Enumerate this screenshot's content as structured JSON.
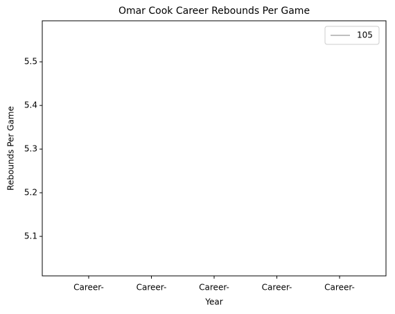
{
  "chart_data": {
    "type": "line",
    "title": "Omar Cook Career Rebounds Per Game",
    "xlabel": "Year",
    "ylabel": "Rebounds Per Game",
    "categories": [
      "Career-",
      "Career-",
      "Career-",
      "Career-",
      "Career-"
    ],
    "series": [
      {
        "name": "105",
        "color": "#bfbfbf",
        "values": [
          null,
          null,
          null,
          null,
          null
        ]
      }
    ],
    "ylim": [
      5.0095,
      5.594
    ],
    "yticks": [
      5.1,
      5.2,
      5.3,
      5.4,
      5.5
    ],
    "legend": "upper right"
  }
}
